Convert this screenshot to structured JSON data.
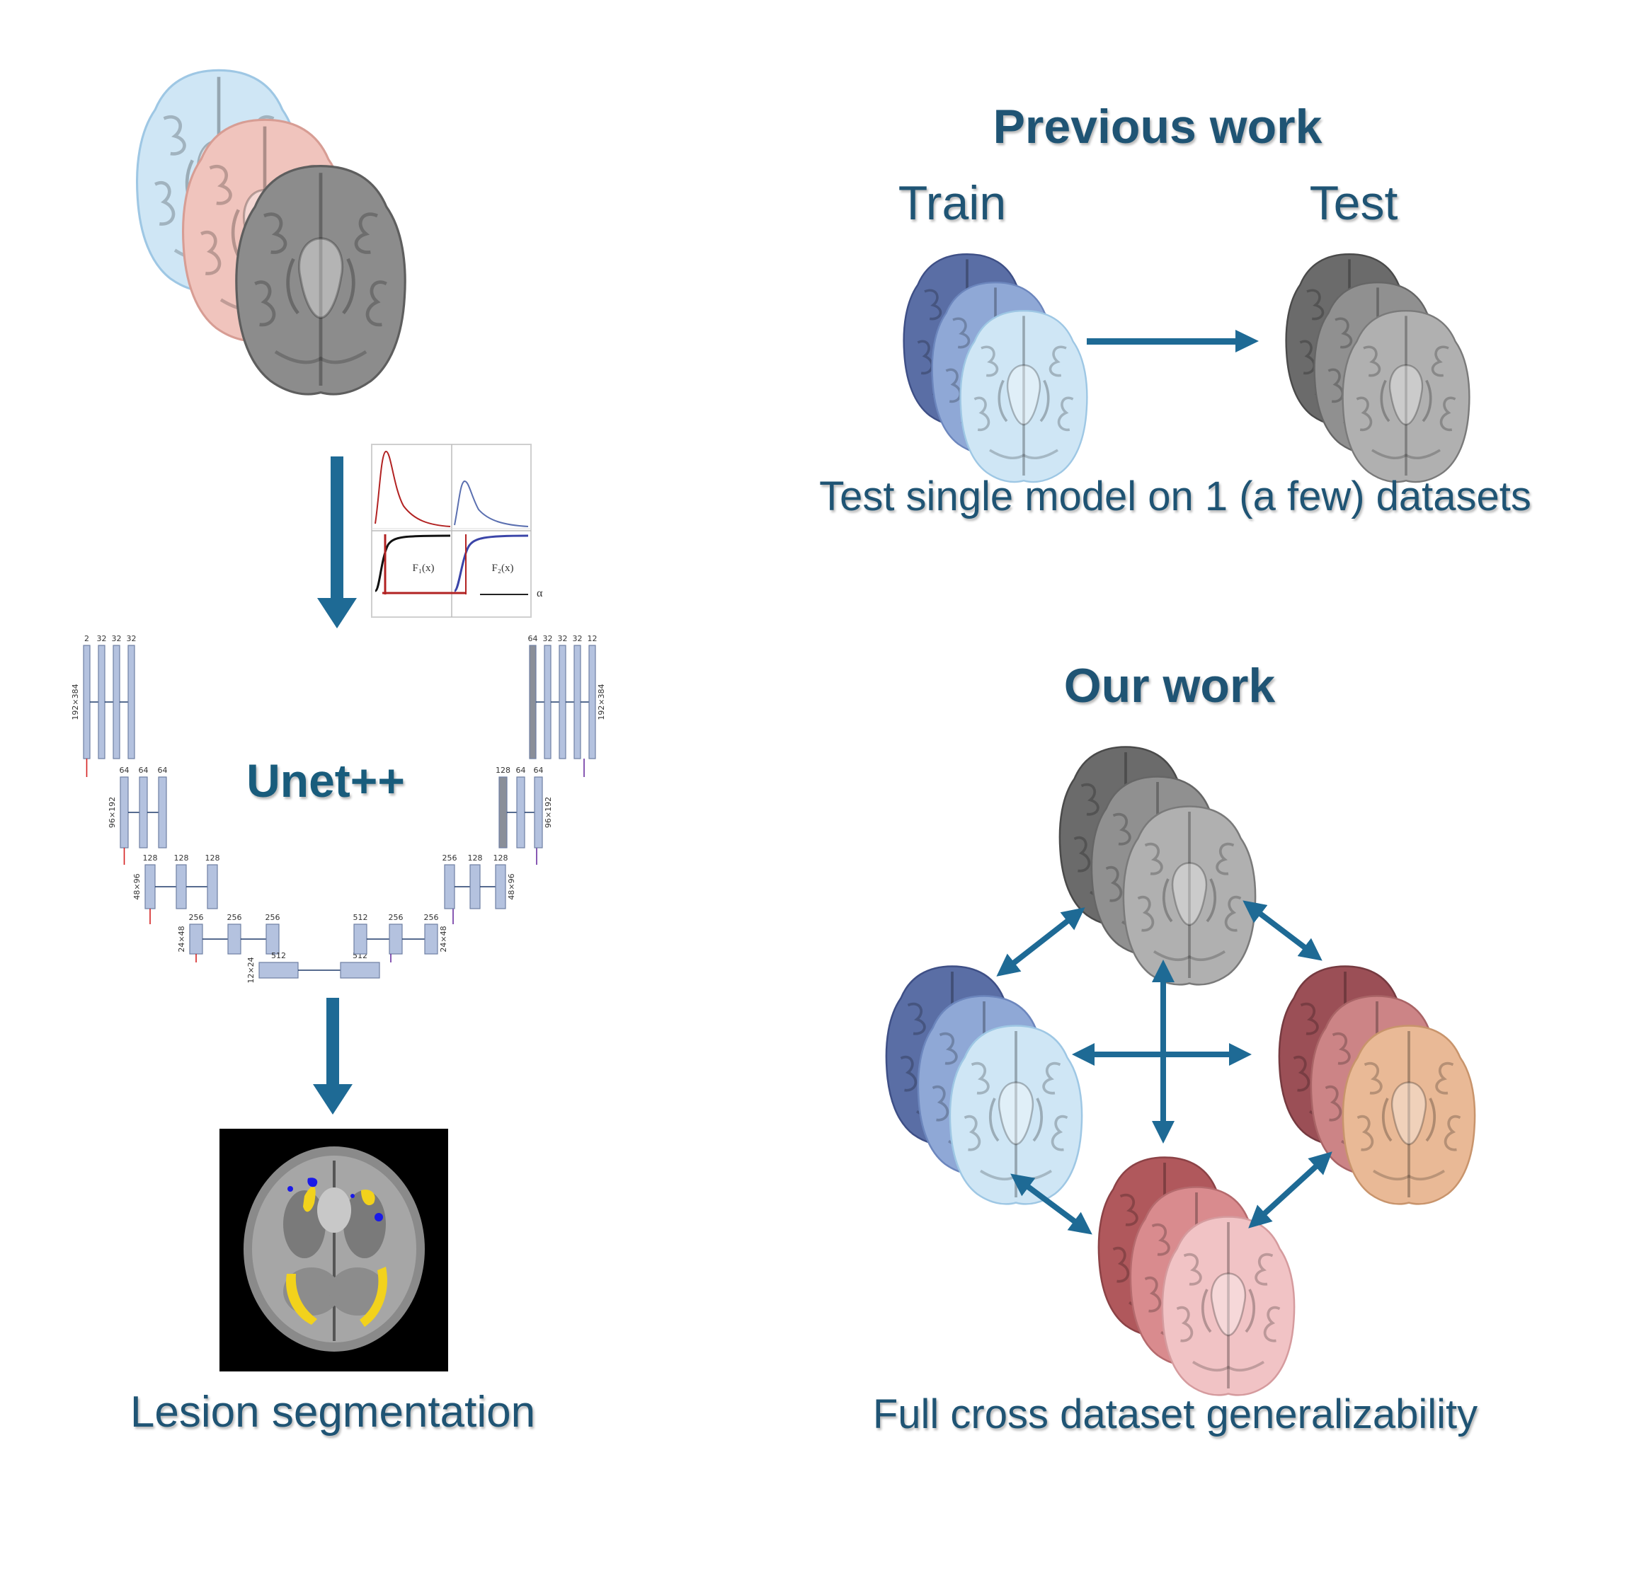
{
  "colors": {
    "accent": "#1f5474",
    "arrow": "#1e6a95",
    "brain_blue": "#cfe6f5",
    "brain_pink": "#f0c4bd",
    "brain_gray": "#8c8c8c",
    "brain_navy": "#5a6ea5",
    "brain_maroon": "#9b4f56",
    "brain_peach": "#e9b996",
    "brain_rose": "#e8a8ab",
    "unet_block": "#b4c2df",
    "lesion_yellow": "#f2d21c",
    "lesion_blue": "#1a1ae8"
  },
  "pipeline": {
    "model_label": "Unet++",
    "output_label": "Lesion segmentation",
    "distribution_plot": {
      "curve_label_1": "F₁(x)",
      "curve_label_2": "F₂(x)",
      "alpha_label": "α"
    },
    "unet_diagram": {
      "encoder": [
        {
          "resolution": "192×384",
          "channels": "2 32 32 32"
        },
        {
          "resolution": "96×192",
          "channels": "64 64 64"
        },
        {
          "resolution": "48×96",
          "channels": "128 128 128"
        },
        {
          "resolution": "24×48",
          "channels": "256 256 256"
        },
        {
          "resolution": "12×24",
          "channels": "512 512"
        }
      ],
      "decoder": [
        {
          "resolution": "24×48",
          "channels": "512 256 256"
        },
        {
          "resolution": "48×96",
          "channels": "256 128 128"
        },
        {
          "resolution": "96×192",
          "channels": "128 64 64"
        },
        {
          "resolution": "192×384",
          "channels": "64 32 32 32 12"
        }
      ]
    }
  },
  "previous_work": {
    "title": "Previous work",
    "train_label": "Train",
    "test_label": "Test",
    "caption": "Test single model on 1 (a few) datasets"
  },
  "our_work": {
    "title": "Our work",
    "caption": "Full cross dataset generalizability"
  }
}
